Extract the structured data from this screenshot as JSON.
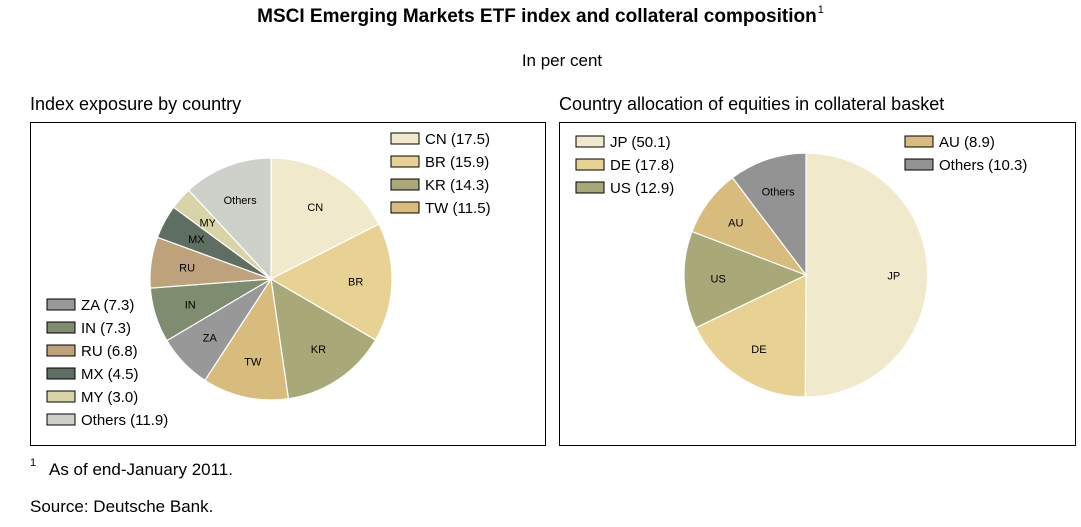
{
  "title": "MSCI Emerging Markets ETF index and collateral composition",
  "title_note_mark": "1",
  "subtitle": "In per cent",
  "footnote": {
    "mark": "1",
    "text": "As of end-January 2011."
  },
  "source": "Source: Deutsche Bank.",
  "chart_data": [
    {
      "type": "pie",
      "title": "Index exposure by country",
      "slices": [
        {
          "label": "CN",
          "value": 17.5,
          "legend": "CN (17.5)",
          "color": "#F1E9CB"
        },
        {
          "label": "BR",
          "value": 15.9,
          "legend": "BR (15.9)",
          "color": "#E7D193"
        },
        {
          "label": "KR",
          "value": 14.3,
          "legend": "KR (14.3)",
          "color": "#A8A878"
        },
        {
          "label": "TW",
          "value": 11.5,
          "legend": "TW (11.5)",
          "color": "#D7BC7E"
        },
        {
          "label": "ZA",
          "value": 7.3,
          "legend": "ZA (7.3)",
          "color": "#989898"
        },
        {
          "label": "IN",
          "value": 7.3,
          "legend": "IN (7.3)",
          "color": "#7E8C70"
        },
        {
          "label": "RU",
          "value": 6.8,
          "legend": "RU (6.8)",
          "color": "#BDA27C"
        },
        {
          "label": "MX",
          "value": 4.5,
          "legend": "MX (4.5)",
          "color": "#5F6E62"
        },
        {
          "label": "MY",
          "value": 3.0,
          "legend": "MY (3.0)",
          "color": "#D9D4A8"
        },
        {
          "label": "Others",
          "value": 11.9,
          "legend": "Others (11.9)",
          "color": "#CED0CA"
        }
      ]
    },
    {
      "type": "pie",
      "title": "Country allocation of equities in collateral basket",
      "slices": [
        {
          "label": "JP",
          "value": 50.1,
          "legend": "JP (50.1)",
          "color": "#F1E9CB"
        },
        {
          "label": "DE",
          "value": 17.8,
          "legend": "DE (17.8)",
          "color": "#E7D193"
        },
        {
          "label": "US",
          "value": 12.9,
          "legend": "US (12.9)",
          "color": "#A8A878"
        },
        {
          "label": "AU",
          "value": 8.9,
          "legend": "AU (8.9)",
          "color": "#D7BC7E"
        },
        {
          "label": "Others",
          "value": 10.3,
          "legend": "Others (10.3)",
          "color": "#939393"
        }
      ]
    }
  ]
}
